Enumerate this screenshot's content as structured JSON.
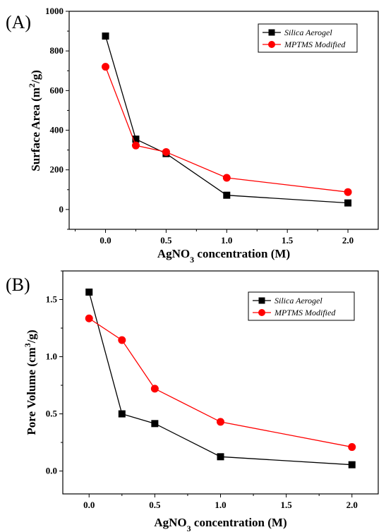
{
  "chart_data": [
    {
      "type": "line",
      "panel_label": "(A)",
      "x": [
        0.0,
        0.25,
        0.5,
        1.0,
        2.0
      ],
      "series": [
        {
          "name": "Silica Aerogel",
          "values": [
            875,
            355,
            282,
            72,
            33
          ],
          "color": "#000000",
          "marker": "square"
        },
        {
          "name": "MPTMS Modified",
          "values": [
            720,
            323,
            290,
            160,
            88
          ],
          "color": "#ff0000",
          "marker": "circle"
        }
      ],
      "xlabel": "AgNO3 concentration (M)",
      "ylabel": "Surface Area (m2/g)",
      "xlim": [
        -0.3,
        2.25
      ],
      "ylim": [
        -100,
        1000
      ],
      "xticks": [
        0.0,
        0.5,
        1.0,
        1.5,
        2.0
      ],
      "xtick_labels": [
        "0.0",
        "0.5",
        "1.0",
        "1.5",
        "2.0"
      ],
      "yticks": [
        0,
        200,
        400,
        600,
        800,
        1000
      ],
      "ytick_labels": [
        "0",
        "200",
        "400",
        "600",
        "800",
        "1000"
      ],
      "legend_position": "top-right",
      "grid": false
    },
    {
      "type": "line",
      "panel_label": "(B)",
      "x": [
        0.0,
        0.25,
        0.5,
        1.0,
        2.0
      ],
      "series": [
        {
          "name": "Silica Aerogel",
          "values": [
            1.565,
            0.5,
            0.415,
            0.125,
            0.055
          ],
          "color": "#000000",
          "marker": "square"
        },
        {
          "name": "MPTMS Modified",
          "values": [
            1.335,
            1.145,
            0.72,
            0.43,
            0.21
          ],
          "color": "#ff0000",
          "marker": "circle"
        }
      ],
      "xlabel": "AgNO3 concentration (M)",
      "ylabel": "Pore Volume (cm3/g)",
      "xlim": [
        -0.2,
        2.2
      ],
      "ylim": [
        -0.2,
        1.75
      ],
      "xticks": [
        0.0,
        0.5,
        1.0,
        1.5,
        2.0
      ],
      "xtick_labels": [
        "0.0",
        "0.5",
        "1.0",
        "1.5",
        "2.0"
      ],
      "yticks": [
        0.0,
        0.5,
        1.0,
        1.5
      ],
      "ytick_labels": [
        "0.0",
        "0.5",
        "1.0",
        "1.5"
      ],
      "legend_position": "top-right",
      "grid": false
    }
  ]
}
